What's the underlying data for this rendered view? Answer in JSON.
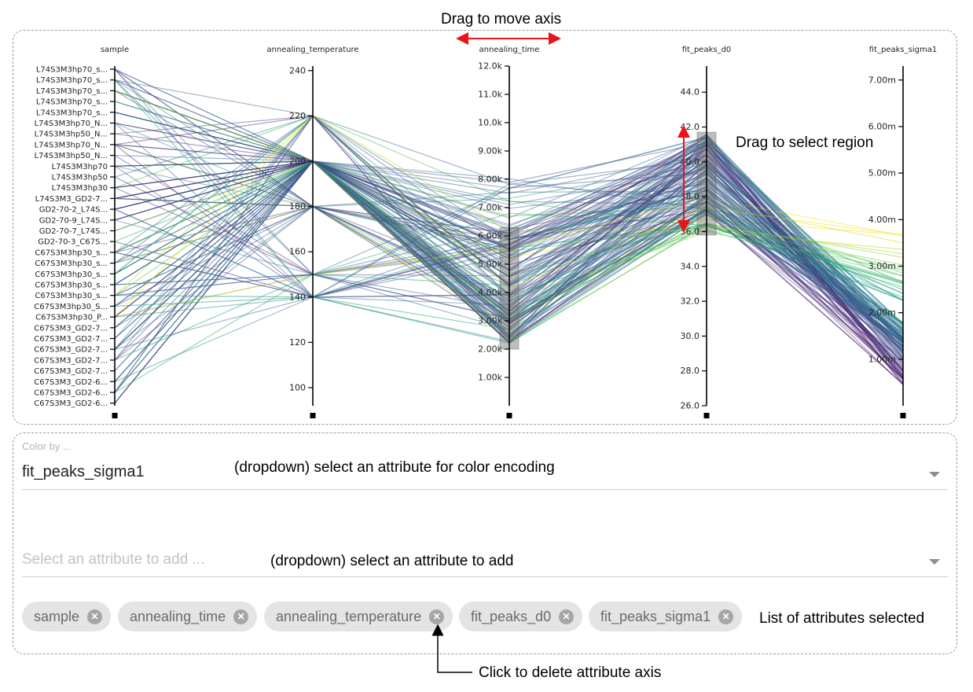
{
  "annotations": {
    "move_axis": "Drag to move axis",
    "select_region": "Drag to select region",
    "color_dropdown": "(dropdown) select an attribute for color encoding",
    "add_dropdown": "(dropdown) select an attribute to add",
    "chip_list": "List of attributes selected",
    "delete_axis": "Click to delete attribute axis"
  },
  "color_by": {
    "label": "Color by ...",
    "value": "fit_peaks_sigma1"
  },
  "add_attribute": {
    "placeholder": "Select an attribute to add ..."
  },
  "chips": [
    "sample",
    "annealing_time",
    "annealing_temperature",
    "fit_peaks_d0",
    "fit_peaks_sigma1"
  ],
  "chart_data": {
    "type": "parallel_coordinates",
    "color_scale": "viridis",
    "axes": [
      {
        "name": "sample",
        "kind": "categorical",
        "labels": [
          "L74S3M3hp70_s...",
          "L74S3M3hp70_s...",
          "L74S3M3hp70_s...",
          "L74S3M3hp70_s...",
          "L74S3M3hp70_s...",
          "L74S3M3hp70_N...",
          "L74S3M3hp50_N...",
          "L74S3M3hp70_N...",
          "L74S3M3hp50_N...",
          "L74S3M3hp70",
          "L74S3M3hp50",
          "L74S3M3hp30",
          "L74S3M3_GD2-7...",
          "GD2-70-2_L74S...",
          "GD2-70-9_L74S...",
          "GD2-70-7_L74S...",
          "GD2-70-3_C67S...",
          "C67S3M3hp30_s...",
          "C67S3M3hp30_s...",
          "C67S3M3hp30_s...",
          "C67S3M3hp30_s...",
          "C67S3M3hp30_s...",
          "C67S3M3hp30_S...",
          "C67S3M3hp30_P...",
          "C67S3M3_GD2-7...",
          "C67S3M3_GD2-7...",
          "C67S3M3_GD2-7...",
          "C67S3M3_GD2-7...",
          "C67S3M3_GD2-7...",
          "C67S3M3_GD2-6...",
          "C67S3M3_GD2-6...",
          "C67S3M3_GD2-6..."
        ]
      },
      {
        "name": "annealing_temperature",
        "kind": "numeric",
        "ticks": [
          "240",
          "220",
          "200",
          "180",
          "160",
          "140",
          "120",
          "100"
        ],
        "range": [
          92,
          242
        ]
      },
      {
        "name": "annealing_time",
        "kind": "numeric",
        "ticks": [
          "12.0k",
          "11.0k",
          "10.0k",
          "9.00k",
          "8.00k",
          "7.00k",
          "6.00k",
          "5.00k",
          "4.00k",
          "3.00k",
          "2.00k",
          "1.00k"
        ],
        "range": [
          0,
          12000
        ],
        "brush": [
          2000,
          6300
        ]
      },
      {
        "name": "fit_peaks_d0",
        "kind": "numeric",
        "ticks": [
          "44.0",
          "42.0",
          "40.0",
          "38.0",
          "36.0",
          "34.0",
          "32.0",
          "30.0",
          "28.0",
          "26.0"
        ],
        "range": [
          26,
          45.5
        ],
        "brush": [
          35.8,
          41.7
        ]
      },
      {
        "name": "fit_peaks_sigma1",
        "kind": "numeric",
        "ticks": [
          "7.00m",
          "6.00m",
          "5.00m",
          "4.00m",
          "3.00m",
          "2.00m",
          "1.00m"
        ],
        "range": [
          0,
          7.3
        ]
      }
    ]
  }
}
